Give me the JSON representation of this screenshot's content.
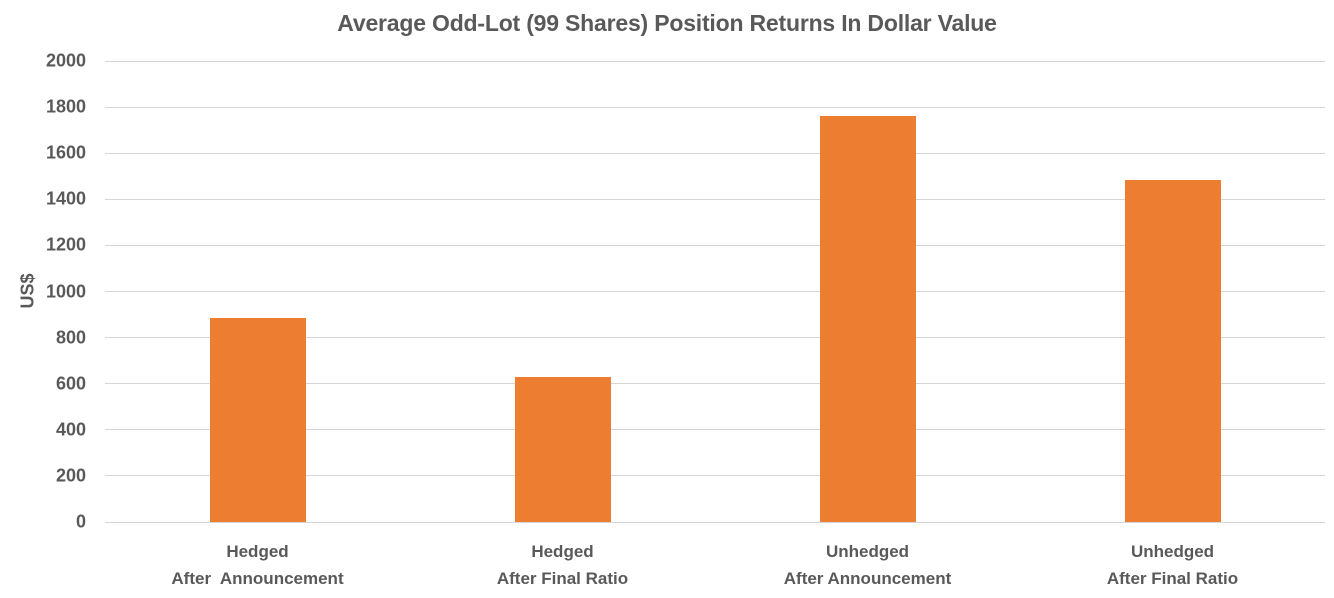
{
  "title": "Average Odd-Lot (99 Shares) Position Returns In Dollar Value",
  "colors": {
    "bar": "#ED7D31",
    "gridline": "#D6D6D6",
    "text": "#595959",
    "background": "#FFFFFF"
  },
  "chart_data": {
    "type": "bar",
    "title": "Average Odd-Lot (99 Shares) Position Returns In Dollar Value",
    "xlabel": "",
    "ylabel": "US$",
    "categories": [
      "Hedged\nAfter  Announcement",
      "Hedged\nAfter Final Ratio",
      "Unhedged\nAfter Announcement",
      "Unhedged\nAfter Final Ratio"
    ],
    "values": [
      885,
      630,
      1760,
      1485
    ],
    "ylim": [
      0,
      2000
    ],
    "ytick_step": 200,
    "ytick_labels": [
      "0",
      "200",
      "400",
      "600",
      "800",
      "1000",
      "1200",
      "1400",
      "1600",
      "1800",
      "2000"
    ],
    "grid": true,
    "legend": false,
    "bar_color": "#ED7D31"
  }
}
